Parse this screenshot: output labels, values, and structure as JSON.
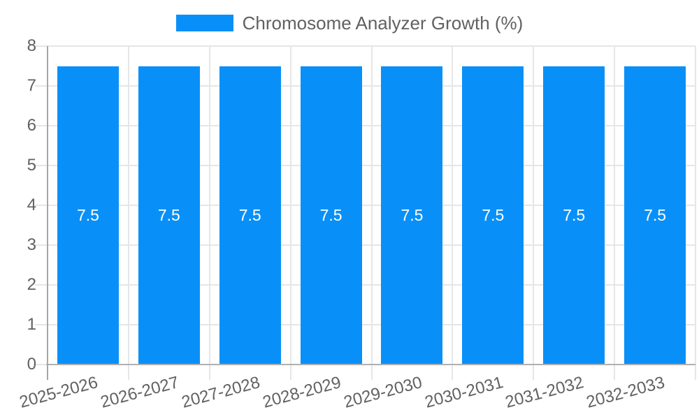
{
  "legend": {
    "series_label": "Chromosome Analyzer Growth (%)",
    "swatch_color": "#0990F8"
  },
  "chart_data": {
    "type": "bar",
    "title": "Chromosome Analyzer Growth (%)",
    "categories": [
      "2025-2026",
      "2026-2027",
      "2027-2028",
      "2028-2029",
      "2029-2030",
      "2030-2031",
      "2031-2032",
      "2032-2033"
    ],
    "series": [
      {
        "name": "Chromosome Analyzer Growth (%)",
        "values": [
          7.5,
          7.5,
          7.5,
          7.5,
          7.5,
          7.5,
          7.5,
          7.5
        ],
        "value_labels": [
          "7.5",
          "7.5",
          "7.5",
          "7.5",
          "7.5",
          "7.5",
          "7.5",
          "7.5"
        ],
        "color": "#0990F8"
      }
    ],
    "xlabel": "",
    "ylabel": "",
    "ylim": [
      0,
      8
    ],
    "yticks": [
      0,
      1,
      2,
      3,
      4,
      5,
      6,
      7,
      8
    ],
    "grid": true,
    "legend_position": "top",
    "x_tick_rotation_deg": -15,
    "value_label_color": "#ffffff"
  },
  "colors": {
    "background": "#ffffff",
    "bar": "#0990F8",
    "gridline": "#e6e6e6",
    "axis_line": "#a6a6a6",
    "baseline": "#b0b0b0",
    "tick_text": "#616161",
    "legend_text": "#616161",
    "value_label": "#ffffff"
  }
}
